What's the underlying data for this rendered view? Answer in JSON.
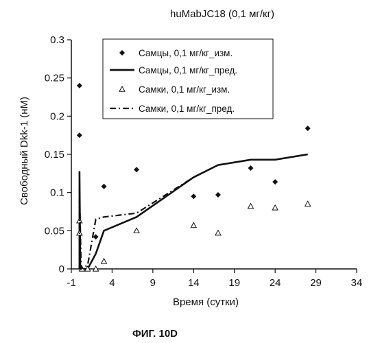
{
  "chart_data": {
    "type": "scatter",
    "title": "huMabJC18 (0,1 мг/кг)",
    "xlabel": "Время (сутки)",
    "ylabel": "Свободный Dkk-1 (нМ)",
    "xlim": [
      -1,
      34
    ],
    "ylim": [
      0,
      0.3
    ],
    "x_ticks": [
      -1,
      4,
      9,
      14,
      19,
      24,
      29,
      34
    ],
    "y_ticks": [
      0,
      0.05,
      0.1,
      0.15,
      0.2,
      0.25,
      0.3
    ],
    "x_tick_labels": [
      "-1",
      "4",
      "9",
      "14",
      "19",
      "24",
      "29",
      "34"
    ],
    "y_tick_labels": [
      "0",
      "0.05",
      "0.1",
      "0.15",
      "0.2",
      "0.25",
      "0.3"
    ],
    "grid": false,
    "legend_position": "top",
    "series": [
      {
        "name": "Самцы, 0,1 мг/кг_изм.",
        "style": "diamond",
        "color": "#111111",
        "points": [
          [
            0,
            0.24
          ],
          [
            0,
            0.175
          ],
          [
            2,
            0.042
          ],
          [
            3,
            0.108
          ],
          [
            7,
            0.13
          ],
          [
            14,
            0.095
          ],
          [
            17,
            0.097
          ],
          [
            21,
            0.132
          ],
          [
            24,
            0.114
          ],
          [
            28,
            0.184
          ]
        ]
      },
      {
        "name": "Самцы, 0,1 мг/кг_пред.",
        "style": "solid",
        "color": "#111111",
        "points": [
          [
            0,
            0
          ],
          [
            0,
            0.128
          ],
          [
            0.1,
            0
          ],
          [
            1,
            0
          ],
          [
            2,
            0.02
          ],
          [
            3,
            0.05
          ],
          [
            7,
            0.068
          ],
          [
            14,
            0.12
          ],
          [
            17,
            0.136
          ],
          [
            21,
            0.143
          ],
          [
            24,
            0.143
          ],
          [
            28,
            0.15
          ]
        ]
      },
      {
        "name": "Самки, 0,1 мг/кг_изм.",
        "style": "triangle",
        "color": "#111111",
        "points": [
          [
            0,
            0.063
          ],
          [
            0,
            0.047
          ],
          [
            0.3,
            0
          ],
          [
            1,
            0
          ],
          [
            2,
            0
          ],
          [
            3,
            0.01
          ],
          [
            7,
            0.05
          ],
          [
            14,
            0.057
          ],
          [
            17,
            0.047
          ],
          [
            21,
            0.082
          ],
          [
            24,
            0.08
          ],
          [
            28,
            0.085
          ]
        ]
      },
      {
        "name": "Самки, 0,1 мг/кг_пред.",
        "style": "dashdot",
        "color": "#111111",
        "points": [
          [
            0,
            0
          ],
          [
            0,
            0.105
          ],
          [
            0.2,
            0
          ],
          [
            1,
            0.005
          ],
          [
            2,
            0.065
          ],
          [
            3,
            0.068
          ],
          [
            7,
            0.073
          ],
          [
            14,
            0.12
          ],
          [
            17,
            0.136
          ],
          [
            21,
            0.143
          ],
          [
            24,
            0.143
          ],
          [
            28,
            0.15
          ]
        ]
      }
    ]
  },
  "caption": "ФИГ. 10D"
}
